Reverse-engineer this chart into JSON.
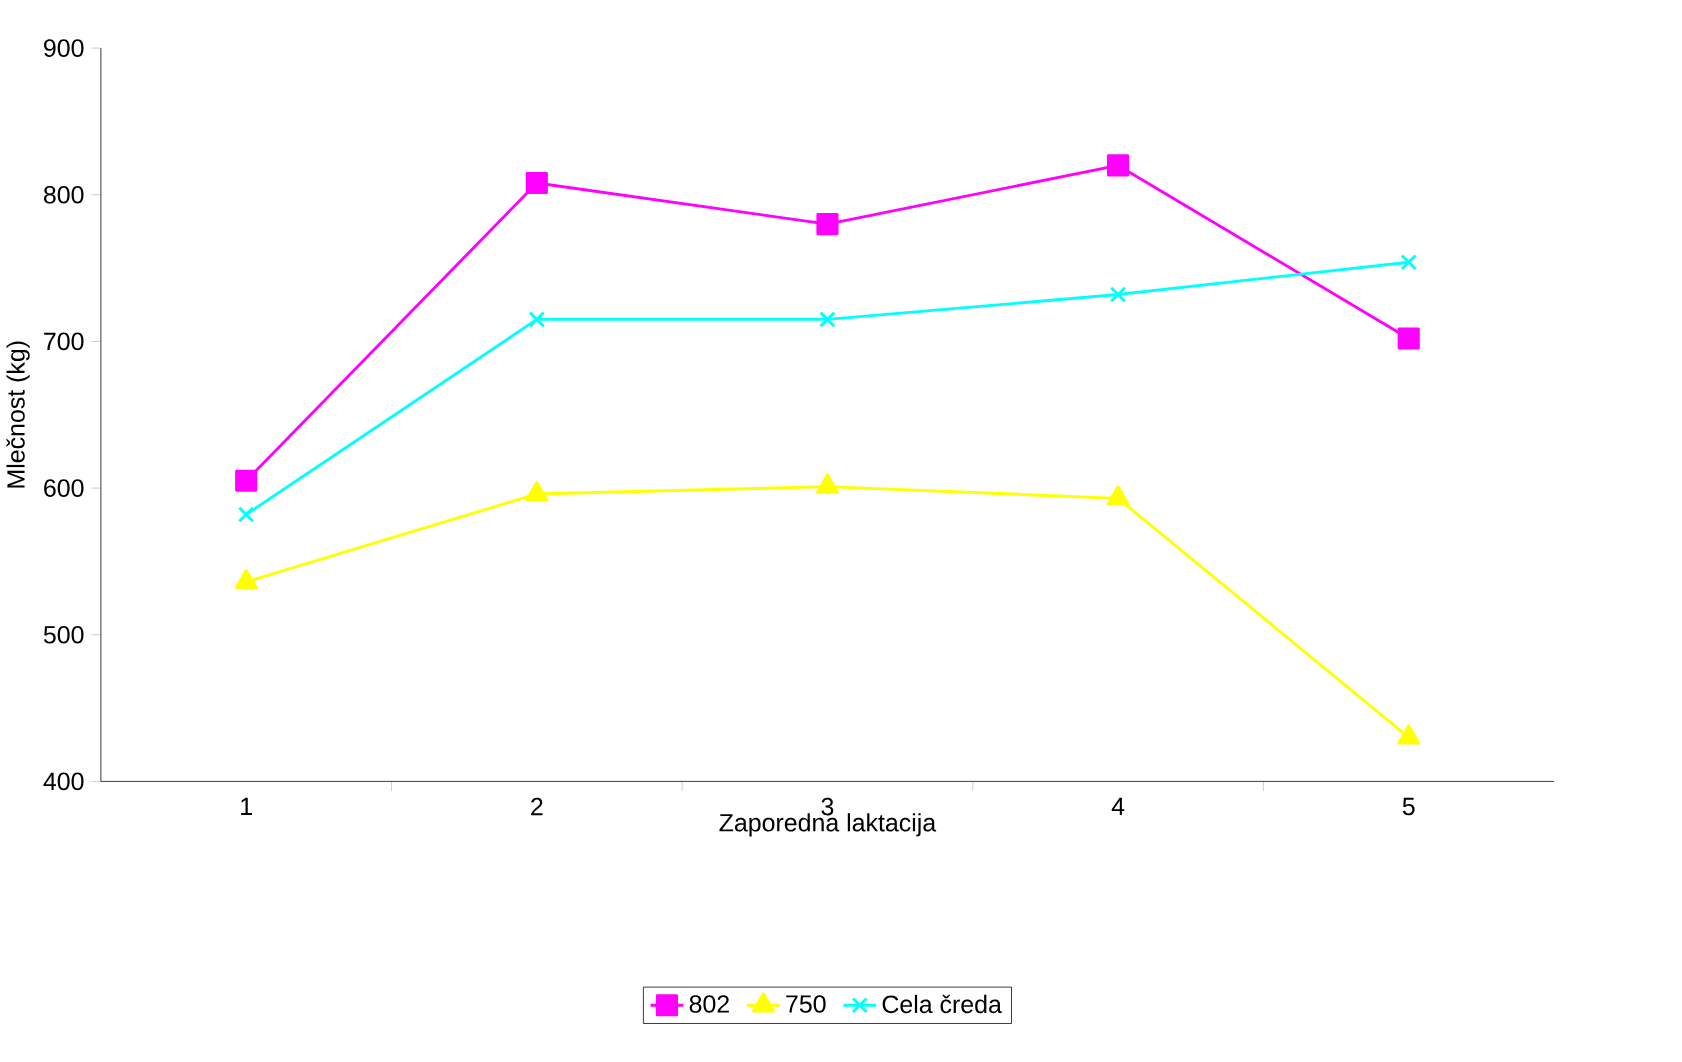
{
  "chart_data": {
    "type": "line",
    "xlabel": "Zaporedna laktacija",
    "ylabel": "Mlečnost (kg)",
    "categories": [
      "1",
      "2",
      "3",
      "4",
      "5"
    ],
    "series": [
      {
        "name": "802",
        "color": "#ff00ff",
        "marker": "square",
        "values": [
          605,
          808,
          780,
          820,
          702
        ]
      },
      {
        "name": "750",
        "color": "#ffff00",
        "marker": "triangle",
        "values": [
          536,
          596,
          601,
          593,
          430
        ]
      },
      {
        "name": "Cela čreda",
        "color": "#00ffff",
        "marker": "cross",
        "values": [
          582,
          715,
          715,
          732,
          754
        ]
      }
    ],
    "ylim": [
      400,
      900
    ],
    "yticks": [
      400,
      500,
      600,
      700,
      800,
      900
    ],
    "grid": false,
    "legend": "bottom",
    "line_style": "solid"
  }
}
